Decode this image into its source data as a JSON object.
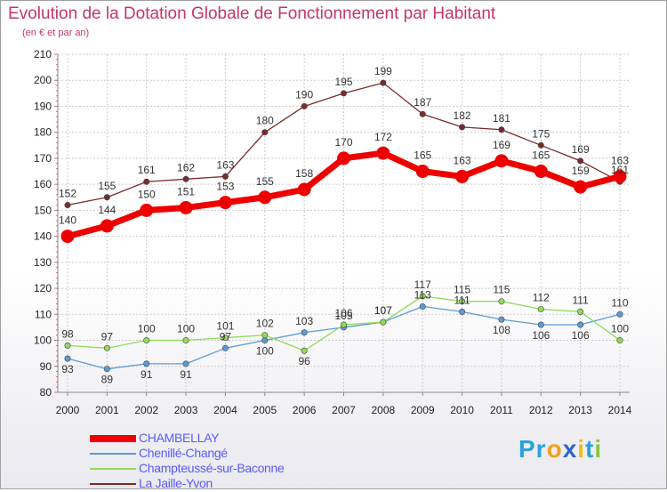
{
  "title": "Evolution de la Dotation Globale de Fonctionnement par Habitant",
  "subtitle": "(en € et par an)",
  "brand": {
    "parts": [
      {
        "text": "Pr",
        "color": "#2aa3d6"
      },
      {
        "text": "o",
        "color": "#f0a020"
      },
      {
        "text": "x",
        "color": "#2e66c9"
      },
      {
        "text": "i",
        "color": "#e8c018"
      },
      {
        "text": "t",
        "color": "#2aa3d6"
      },
      {
        "text": "i",
        "color": "#8bc63e"
      }
    ]
  },
  "chart_data": {
    "type": "line",
    "x": [
      "2000",
      "2001",
      "2002",
      "2003",
      "2004",
      "2005",
      "2006",
      "2007",
      "2008",
      "2009",
      "2010",
      "2011",
      "2012",
      "2013",
      "2014"
    ],
    "ylim": [
      80,
      210
    ],
    "yticks": [
      80,
      90,
      100,
      110,
      120,
      130,
      140,
      150,
      160,
      170,
      180,
      190,
      200,
      210
    ],
    "grid": true,
    "legend_position": "bottom-left",
    "series": [
      {
        "name": "CHAMBELLAY",
        "color": "#ee0000",
        "emphasis": true,
        "values": [
          140,
          144,
          150,
          151,
          153,
          155,
          158,
          170,
          172,
          165,
          163,
          169,
          165,
          159,
          163
        ]
      },
      {
        "name": "Chenillé-Changé",
        "color": "#5b9bd5",
        "values": [
          93,
          89,
          91,
          91,
          97,
          100,
          103,
          105,
          107,
          113,
          111,
          108,
          106,
          106,
          110
        ]
      },
      {
        "name": "Champteussé-sur-Baconne",
        "color": "#8fdb5a",
        "values": [
          98,
          97,
          100,
          100,
          101,
          102,
          96,
          106,
          107,
          117,
          115,
          115,
          112,
          111,
          100
        ]
      },
      {
        "name": "La Jaille-Yvon",
        "color": "#7a2b2b",
        "values": [
          152,
          155,
          161,
          162,
          163,
          180,
          190,
          195,
          199,
          187,
          182,
          181,
          175,
          169,
          161
        ]
      }
    ]
  }
}
